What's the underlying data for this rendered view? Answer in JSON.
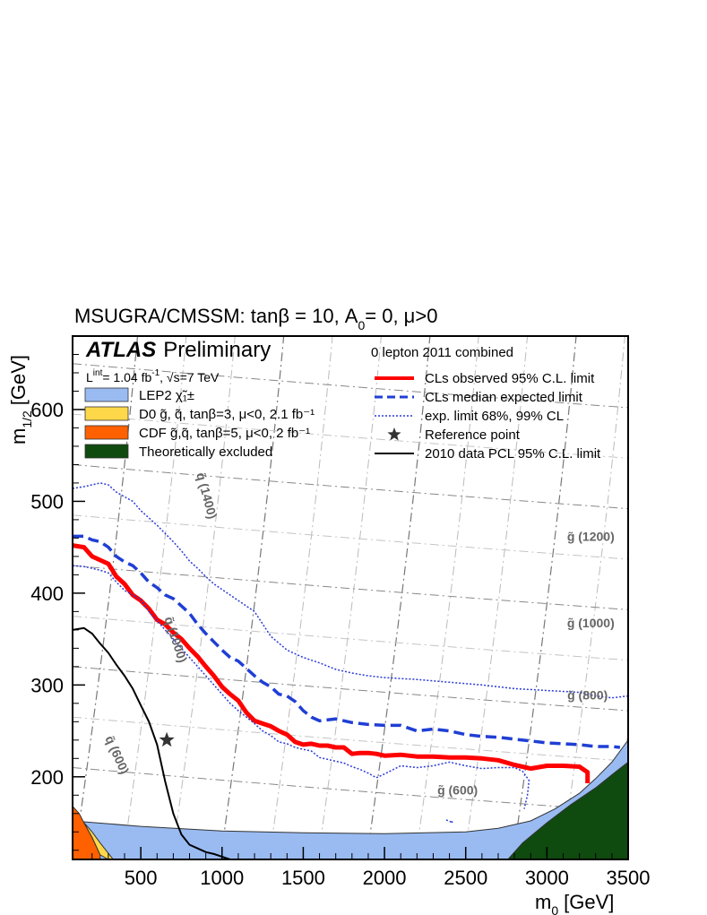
{
  "chart_data": {
    "type": "line",
    "title": "MSUGRA/CMSSM: tanβ = 10, A",
    "title_sub": "0",
    "title_tail": "= 0, μ>0",
    "xlabel": "m",
    "xlabel_sub": "0",
    "xlabel_unit": "[GeV]",
    "ylabel": "m",
    "ylabel_sub": "1/2",
    "ylabel_unit": "[GeV]",
    "xlim": [
      80,
      3500
    ],
    "ylim": [
      110,
      680
    ],
    "xticks": [
      "500",
      "1000",
      "1500",
      "2000",
      "2500",
      "3000",
      "3500"
    ],
    "yticks": [
      "200",
      "300",
      "400",
      "500",
      "600"
    ],
    "experiment": "ATLAS",
    "experiment_tag": "Preliminary",
    "lumi_text": "L",
    "lumi_sup": "int",
    "lumi_value": "= 1.04 fb",
    "lumi_exp": "-1",
    "energy_text": ", √s=7 TeV",
    "analysis_label": "0 lepton 2011 combined",
    "colors": {
      "observed": "#ff0000",
      "expected": "#1f3fd4",
      "band": "#2a3ad6",
      "pcl2010": "#000000",
      "lep2": "#99bbf2",
      "d0": "#ffd84a",
      "cdf": "#ff6000",
      "theory": "#0f4a0f",
      "grid": "#8a8a8a"
    },
    "left_legend": [
      {
        "key": "lep2",
        "label": "LEP2 χ̃₁±"
      },
      {
        "key": "d0",
        "label": "D0 g̃, q̃, tanβ=3, μ<0, 2.1 fb⁻¹"
      },
      {
        "key": "cdf",
        "label": "CDF g̃,q̃, tanβ=5, μ<0, 2 fb⁻¹"
      },
      {
        "key": "theory",
        "label": "Theoretically excluded"
      }
    ],
    "right_legend": [
      {
        "key": "observed",
        "label": "CLs observed 95% C.L. limit"
      },
      {
        "key": "expected",
        "label": "CLs median expected limit"
      },
      {
        "key": "band",
        "label": "exp. limit 68%, 99% CL"
      },
      {
        "key": "star",
        "label": "Reference point"
      },
      {
        "key": "pcl2010",
        "label": "2010 data PCL 95% C.L. limit"
      }
    ],
    "series": [
      {
        "name": "CLs observed 95% C.L. limit",
        "key": "observed",
        "x": [
          80,
          150,
          200,
          250,
          300,
          350,
          400,
          450,
          500,
          550,
          600,
          650,
          700,
          750,
          800,
          850,
          900,
          950,
          1000,
          1050,
          1100,
          1150,
          1200,
          1250,
          1300,
          1350,
          1400,
          1450,
          1500,
          1550,
          1600,
          1650,
          1700,
          1750,
          1800,
          1850,
          1900,
          1950,
          2000,
          2100,
          2200,
          2300,
          2400,
          2500,
          2600,
          2700,
          2800,
          2900,
          3000,
          3100,
          3200,
          3250,
          3250
        ],
        "y": [
          452,
          450,
          440,
          436,
          432,
          418,
          410,
          398,
          392,
          383,
          371,
          366,
          357,
          350,
          340,
          331,
          320,
          310,
          298,
          290,
          283,
          270,
          261,
          258,
          255,
          250,
          246,
          238,
          235,
          236,
          234,
          234,
          232,
          232,
          225,
          226,
          226,
          225,
          223,
          224,
          222,
          222,
          221,
          221,
          220,
          218,
          213,
          209,
          212,
          212,
          211,
          205,
          193
        ]
      },
      {
        "name": "CLs median expected limit",
        "key": "expected",
        "x": [
          80,
          150,
          200,
          250,
          300,
          350,
          400,
          450,
          500,
          550,
          600,
          650,
          700,
          750,
          800,
          850,
          900,
          950,
          1000,
          1050,
          1100,
          1150,
          1200,
          1250,
          1300,
          1350,
          1400,
          1450,
          1500,
          1550,
          1600,
          1700,
          1800,
          1900,
          2000,
          2100,
          2200,
          2300,
          2400,
          2500,
          2600,
          2700,
          2800,
          2900,
          3000,
          3100,
          3200,
          3300,
          3400,
          3450
        ],
        "y": [
          462,
          462,
          458,
          456,
          450,
          440,
          434,
          430,
          422,
          412,
          406,
          398,
          394,
          386,
          378,
          366,
          356,
          347,
          338,
          330,
          326,
          318,
          310,
          303,
          298,
          290,
          288,
          282,
          272,
          265,
          261,
          263,
          259,
          257,
          256,
          256,
          250,
          252,
          250,
          246,
          244,
          243,
          241,
          239,
          237,
          236,
          235,
          233,
          233,
          232
        ]
      },
      {
        "name": "exp. limit 68% (upper)",
        "key": "band",
        "x": [
          80,
          150,
          200,
          250,
          300,
          350,
          400,
          450,
          500,
          550,
          600,
          650,
          700,
          750,
          800,
          850,
          900,
          950,
          1000,
          1100,
          1200,
          1300,
          1400,
          1500,
          1600,
          1700,
          1800,
          1900,
          2000,
          2200,
          2400,
          2600,
          2800,
          3000,
          3200,
          3300,
          3400,
          3500
        ],
        "y": [
          514,
          516,
          518,
          520,
          518,
          510,
          505,
          500,
          490,
          482,
          474,
          465,
          456,
          446,
          435,
          427,
          418,
          410,
          404,
          392,
          380,
          353,
          338,
          330,
          324,
          317,
          313,
          310,
          308,
          306,
          303,
          300,
          296,
          294,
          292,
          288,
          286,
          288
        ]
      },
      {
        "name": "exp. limit 68% (lower)",
        "key": "band",
        "x": [
          80,
          150,
          200,
          250,
          300,
          350,
          400,
          450,
          500,
          550,
          600,
          650,
          700,
          750,
          800,
          850,
          900,
          950,
          1000,
          1050,
          1100,
          1150,
          1200,
          1250,
          1300,
          1350,
          1400,
          1450,
          1500,
          1550,
          1600,
          1650,
          1700,
          1750,
          1800,
          1850,
          1900,
          1950,
          2000,
          2100,
          2200,
          2300,
          2400,
          2500,
          2600,
          2700,
          2800,
          2850,
          2890,
          2880,
          2860
        ],
        "y": [
          430,
          429,
          427,
          425,
          422,
          412,
          403,
          398,
          393,
          380,
          370,
          360,
          350,
          340,
          330,
          320,
          310,
          300,
          290,
          280,
          272,
          265,
          258,
          250,
          245,
          238,
          236,
          232,
          230,
          228,
          221,
          219,
          217,
          215,
          211,
          208,
          204,
          199,
          203,
          212,
          210,
          212,
          216,
          212,
          209,
          210,
          210,
          206,
          196,
          180,
          165
        ]
      },
      {
        "name": "2010 data PCL 95% C.L. limit",
        "key": "pcl2010",
        "x": [
          80,
          150,
          200,
          250,
          300,
          350,
          400,
          450,
          500,
          550,
          600,
          650,
          700,
          750,
          800,
          850,
          900,
          950,
          1000,
          1050
        ],
        "y": [
          360,
          362,
          356,
          345,
          335,
          322,
          310,
          296,
          278,
          260,
          235,
          195,
          160,
          137,
          126,
          122,
          118,
          116,
          113,
          110
        ]
      }
    ],
    "regions": [
      {
        "name": "LEP2 χ̃±",
        "key": "lep2",
        "x": [
          80,
          500,
          1000,
          1500,
          2000,
          2500,
          2700,
          2900,
          3050,
          3200,
          3300,
          3400,
          3500,
          3500,
          80
        ],
        "y": [
          152,
          146,
          141,
          139,
          138,
          140,
          144,
          152,
          165,
          182,
          198,
          216,
          240,
          110,
          110
        ]
      },
      {
        "name": "Theoretically excluded",
        "key": "theory",
        "x": [
          2760,
          2850,
          3000,
          3150,
          3300,
          3420,
          3500,
          3500
        ],
        "y": [
          110,
          128,
          150,
          170,
          188,
          205,
          216,
          110
        ]
      },
      {
        "name": "CDF",
        "key": "cdf",
        "x": [
          80,
          120,
          150,
          200,
          250,
          250,
          80
        ],
        "y": [
          168,
          160,
          150,
          134,
          115,
          110,
          110
        ]
      },
      {
        "name": "D0",
        "key": "d0",
        "x": [
          150,
          200,
          250,
          300,
          330,
          250,
          200,
          150
        ],
        "y": [
          150,
          134,
          115,
          110,
          110,
          128,
          140,
          150
        ]
      }
    ],
    "reference_point": {
      "label": "Reference point",
      "x": 660,
      "y": 240
    },
    "iso_labels": [
      {
        "text": "q̃ (1400)",
        "x": 880,
        "y": 505,
        "rot": 75
      },
      {
        "text": "q̃ (1000)",
        "x": 690,
        "y": 348,
        "rot": 72
      },
      {
        "text": "q̃ (600)",
        "x": 330,
        "y": 222,
        "rot": 66
      },
      {
        "text": "g̃ (1200)",
        "x": 3270,
        "y": 457,
        "rot": 0
      },
      {
        "text": "g̃ (1000)",
        "x": 3270,
        "y": 363,
        "rot": 0
      },
      {
        "text": "g̃ (800)",
        "x": 3250,
        "y": 284,
        "rot": 0
      },
      {
        "text": "g̃ (600)",
        "x": 2450,
        "y": 181,
        "rot": 0
      }
    ]
  }
}
